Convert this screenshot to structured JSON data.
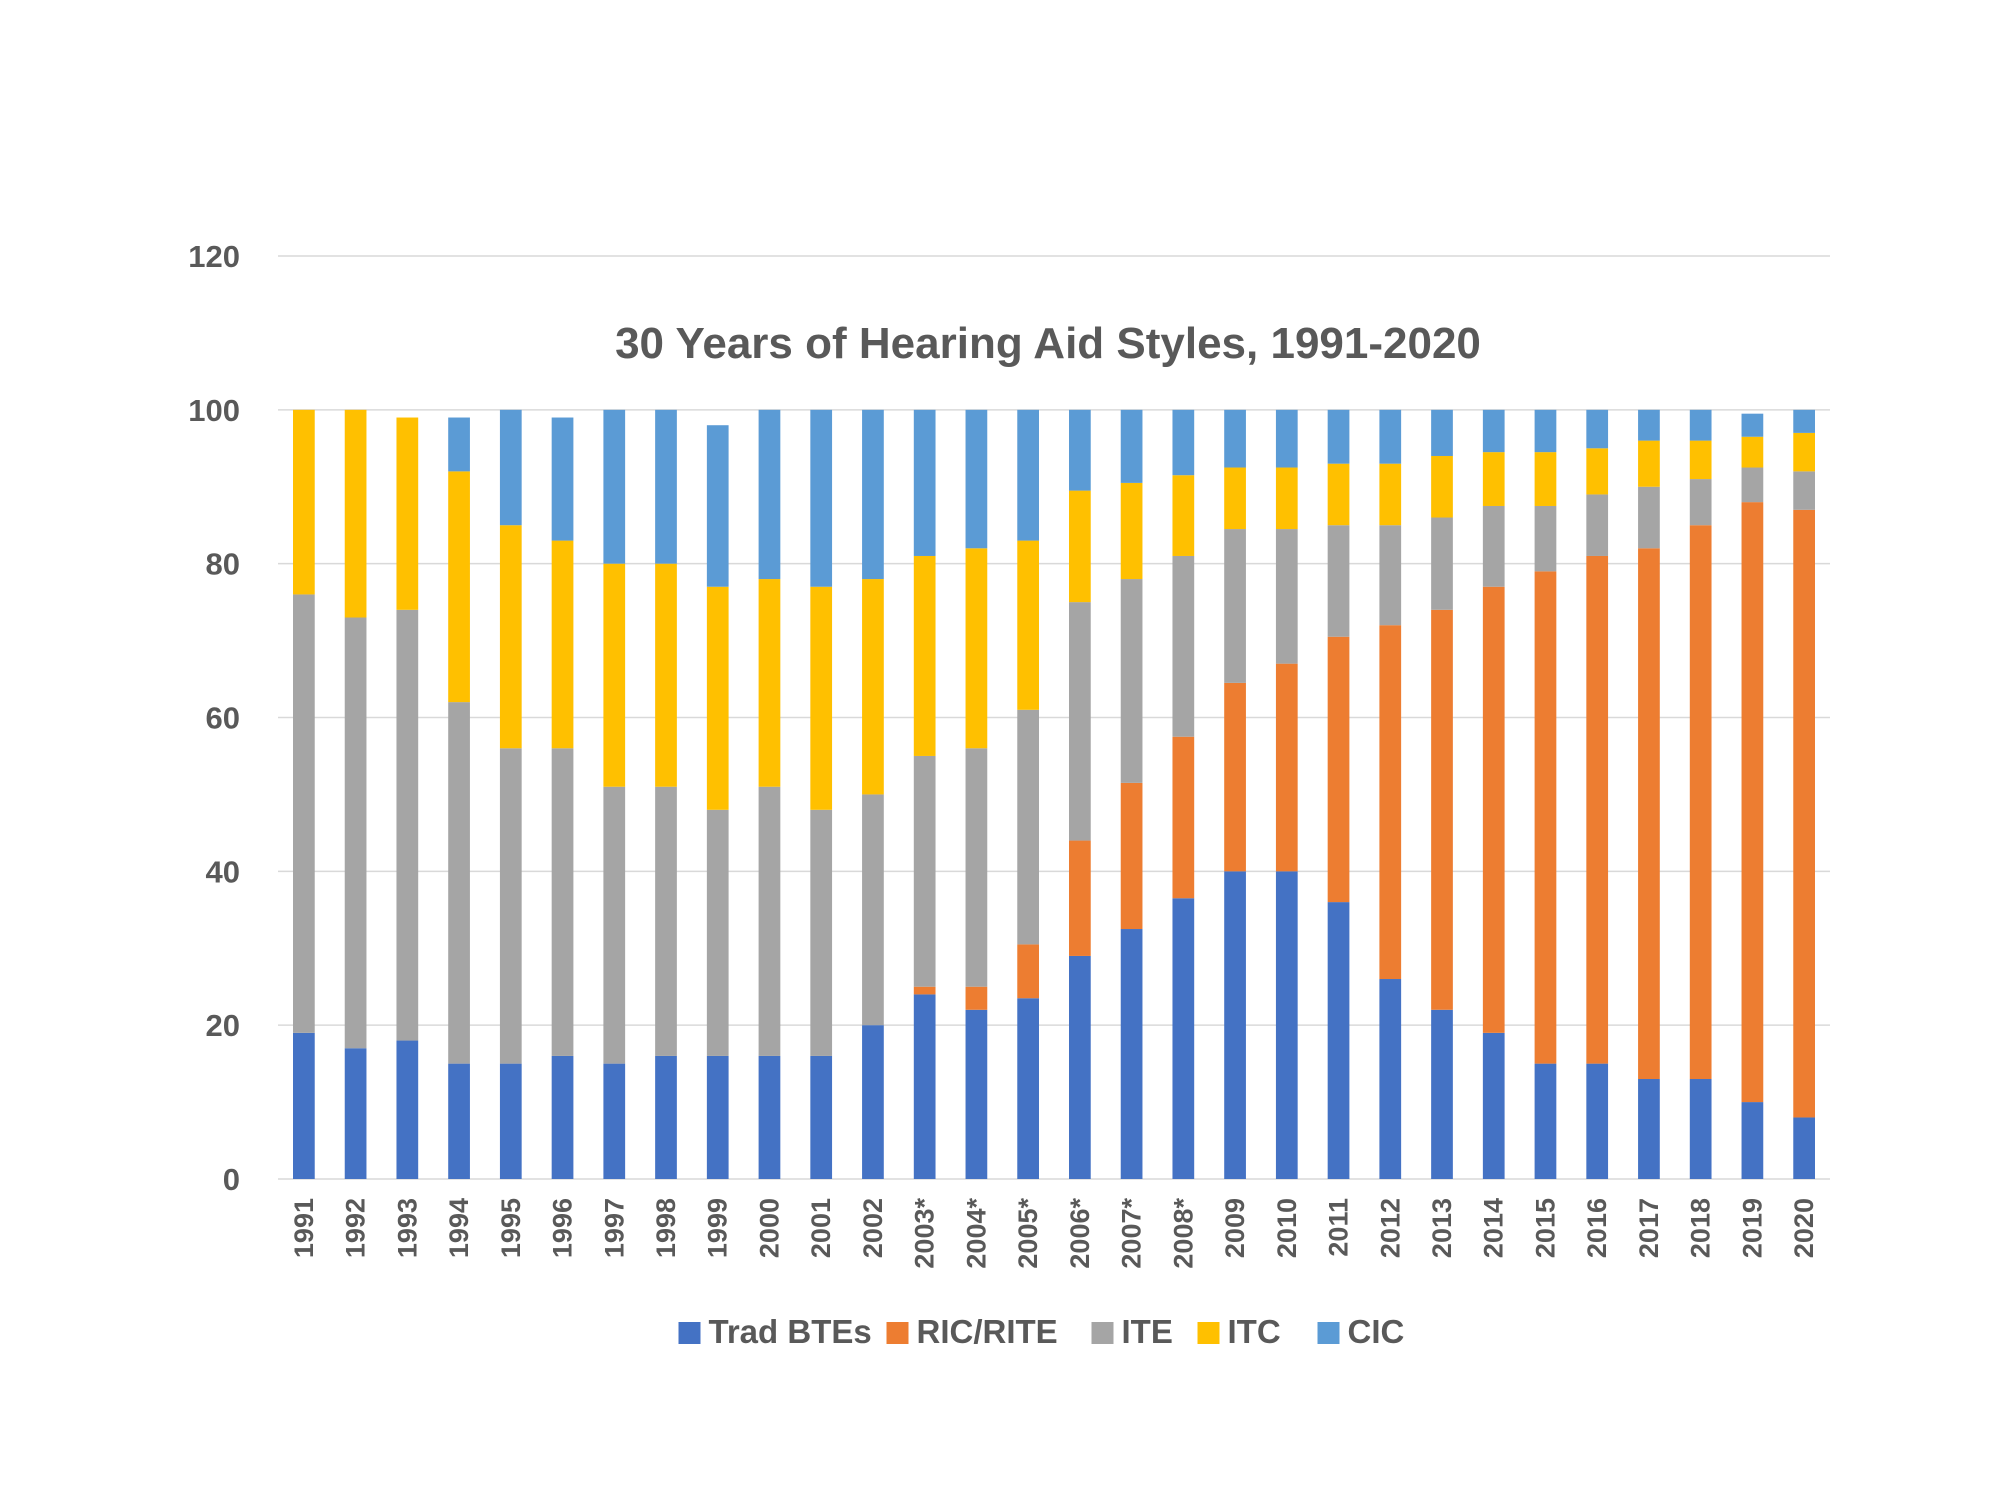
{
  "chart_data": {
    "type": "bar",
    "stacked": true,
    "title": "30 Years of Hearing Aid Styles, 1991-2020",
    "xlabel": "",
    "ylabel": "",
    "ylim": [
      0,
      120
    ],
    "yticks": [
      0,
      20,
      40,
      60,
      80,
      100,
      120
    ],
    "grid": true,
    "legend_position": "bottom",
    "categories": [
      "1991",
      "1992",
      "1993",
      "1994",
      "1995",
      "1996",
      "1997",
      "1998",
      "1999",
      "2000",
      "2001",
      "2002",
      "2003*",
      "2004*",
      "2005*",
      "2006*",
      "2007*",
      "2008*",
      "2009",
      "2010",
      "2011",
      "2012",
      "2013",
      "2014",
      "2015",
      "2016",
      "2017",
      "2018",
      "2019",
      "2020"
    ],
    "series": [
      {
        "name": "Trad BTEs",
        "color": "#4472C4",
        "values": [
          19,
          17,
          18,
          15,
          15,
          16,
          15,
          16,
          16,
          16,
          16,
          20,
          24,
          22,
          23.5,
          29,
          32.5,
          36.5,
          40,
          40,
          36,
          26,
          22,
          19,
          15,
          15,
          13,
          13,
          10,
          8
        ]
      },
      {
        "name": "RIC/RITE",
        "color": "#ED7D31",
        "values": [
          0,
          0,
          0,
          0,
          0,
          0,
          0,
          0,
          0,
          0,
          0,
          0,
          1,
          3,
          7,
          15,
          19,
          21,
          24.5,
          27,
          34.5,
          46,
          52,
          58,
          64,
          66,
          69,
          72,
          78,
          79
        ]
      },
      {
        "name": "ITE",
        "color": "#A5A5A5",
        "values": [
          57,
          56,
          56,
          47,
          41,
          40,
          36,
          35,
          32,
          35,
          32,
          30,
          30,
          31,
          30.5,
          31,
          26.5,
          23.5,
          20,
          17.5,
          14.5,
          13,
          12,
          10.5,
          8.5,
          8,
          8,
          6,
          4.5,
          5
        ]
      },
      {
        "name": "ITC",
        "color": "#FFC000",
        "values": [
          24,
          27,
          25,
          30,
          29,
          27,
          29,
          29,
          29,
          27,
          29,
          28,
          26,
          26,
          22,
          14.5,
          12.5,
          10.5,
          8,
          8,
          8,
          8,
          8,
          7,
          7,
          6,
          6,
          5,
          4,
          5
        ]
      },
      {
        "name": "CIC",
        "color": "#5B9BD5",
        "values": [
          0,
          0,
          0,
          7,
          15,
          16,
          20,
          20,
          21,
          22,
          23,
          22,
          19,
          18,
          17,
          10.5,
          9.5,
          8.5,
          7.5,
          7.5,
          7,
          7,
          6,
          5.5,
          5.5,
          5,
          4,
          4,
          3,
          3
        ]
      }
    ]
  }
}
